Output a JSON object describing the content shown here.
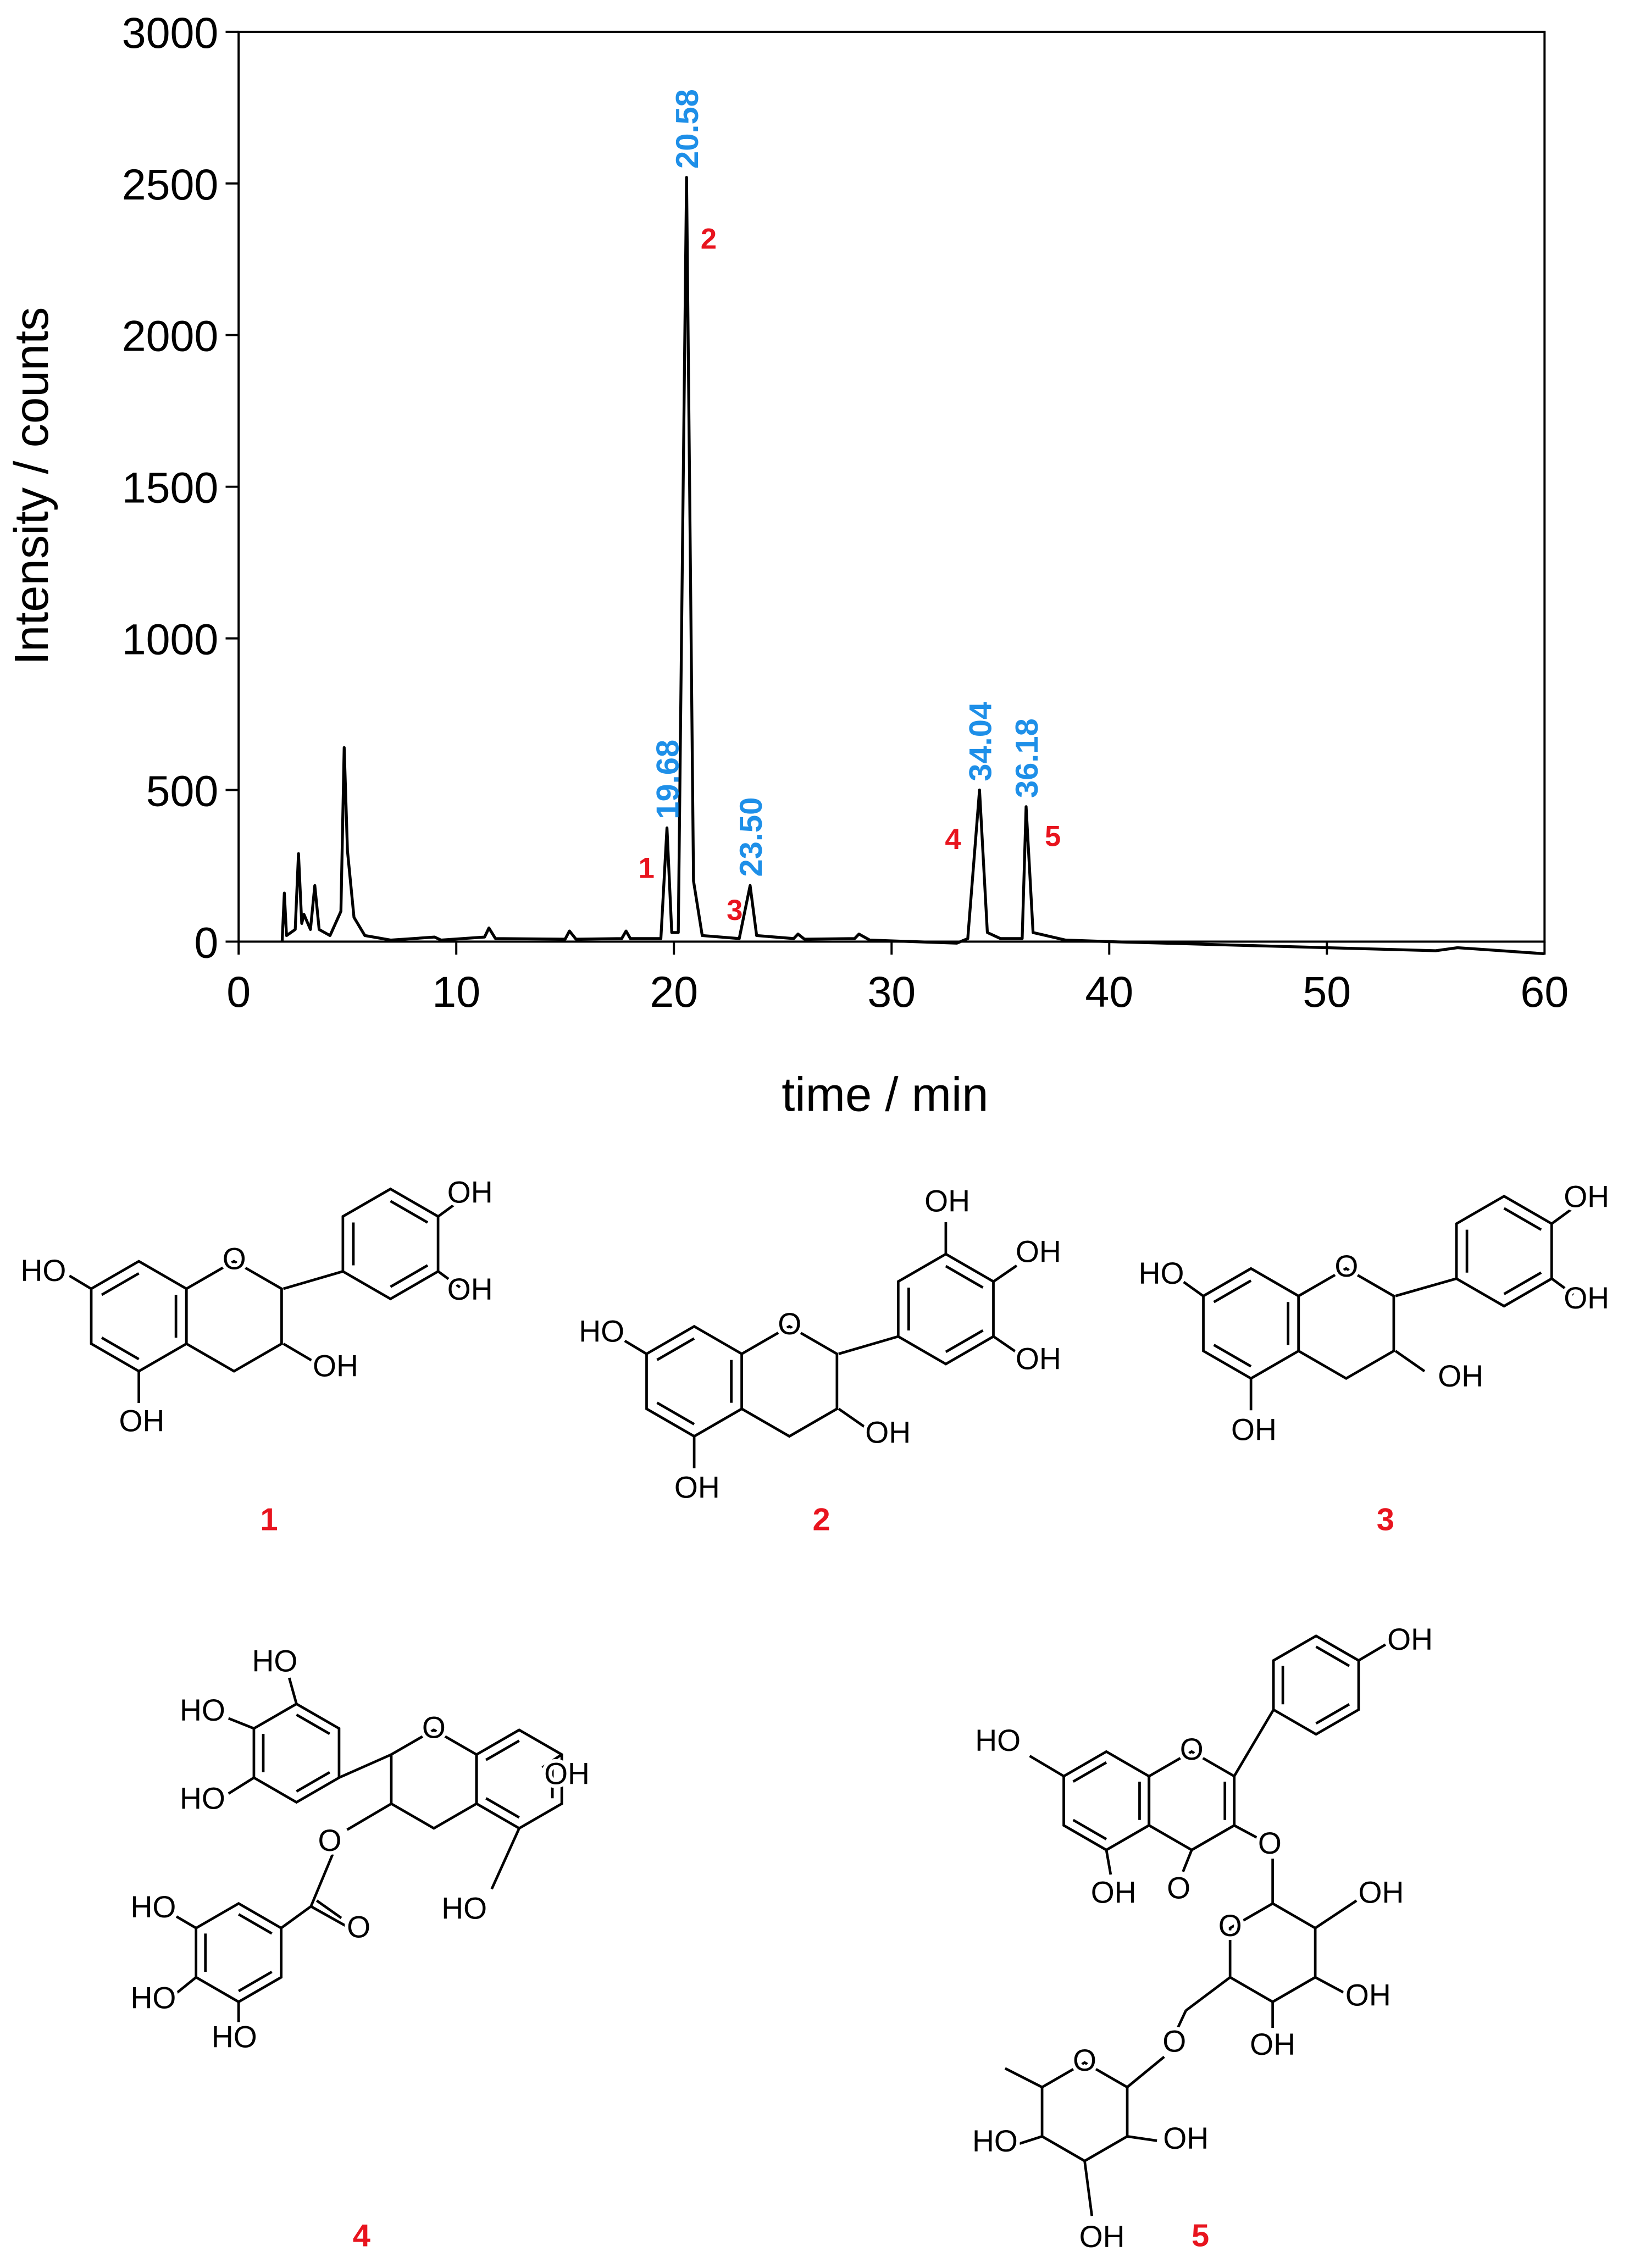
{
  "chart_data": {
    "type": "line",
    "x_label": "time / min",
    "y_label": "Intensity / counts",
    "x": [
      2.0,
      2.1,
      2.2,
      2.6,
      2.75,
      2.9,
      3.0,
      3.3,
      3.5,
      3.7,
      4.2,
      4.7,
      4.85,
      5.0,
      5.3,
      5.8,
      7,
      9,
      9.3,
      11.3,
      11.5,
      11.8,
      15.0,
      15.2,
      15.5,
      17.6,
      17.8,
      18.0,
      19.4,
      19.68,
      19.9,
      20.2,
      20.58,
      20.9,
      21.3,
      23.0,
      23.5,
      23.8,
      25.5,
      25.7,
      26,
      28.3,
      28.5,
      29,
      33,
      33.5,
      34.04,
      34.4,
      35,
      36.0,
      36.18,
      36.5,
      38,
      40,
      45,
      50,
      55,
      56,
      60
    ],
    "values": [
      0,
      160,
      20,
      40,
      290,
      60,
      90,
      40,
      185,
      40,
      20,
      100,
      640,
      300,
      80,
      20,
      5,
      15,
      5,
      15,
      45,
      10,
      8,
      35,
      8,
      10,
      35,
      10,
      10,
      375,
      30,
      30,
      2520,
      200,
      20,
      10,
      185,
      20,
      10,
      25,
      8,
      10,
      25,
      5,
      -5,
      10,
      500,
      30,
      10,
      10,
      445,
      30,
      5,
      0,
      -10,
      -20,
      -30,
      -20,
      -40
    ],
    "color": "#000000",
    "xlim": [
      0,
      60
    ],
    "xticks": [
      0,
      10,
      20,
      30,
      40,
      50,
      60
    ],
    "ylim": [
      0,
      3000
    ],
    "yticks": [
      0,
      500,
      1000,
      1500,
      2000,
      2500,
      3000
    ],
    "peak_times": [
      19.68,
      20.58,
      23.5,
      34.04,
      36.18
    ],
    "peak_time_labels": [
      "19.68",
      "20.58",
      "23.50",
      "34.04",
      "36.18"
    ],
    "peak_numbers": [
      "1",
      "2",
      "3",
      "4",
      "5"
    ],
    "peak_time_color": "#1e8fe8",
    "peak_number_color": "#e8141e"
  },
  "structures": [
    {
      "number": "1",
      "labels": [
        "HO",
        "O",
        "OH",
        "OH",
        "OH",
        "OH"
      ]
    },
    {
      "number": "2",
      "labels": [
        "HO",
        "O",
        "OH",
        "OH",
        "OH",
        "OH",
        "OH"
      ]
    },
    {
      "number": "3",
      "labels": [
        "HO",
        "O",
        "OH",
        "OH",
        "OH",
        "OH"
      ]
    },
    {
      "number": "4",
      "labels": [
        "HO",
        "HO",
        "HO",
        "O",
        "OH",
        "HO",
        "O",
        "O",
        "HO",
        "HO",
        "HO"
      ]
    },
    {
      "number": "5",
      "labels": [
        "HO",
        "O",
        "OH",
        "OH",
        "O",
        "O",
        "O",
        "OH",
        "OH",
        "OH",
        "O",
        "O",
        "HO",
        "OH",
        "OH"
      ]
    }
  ]
}
